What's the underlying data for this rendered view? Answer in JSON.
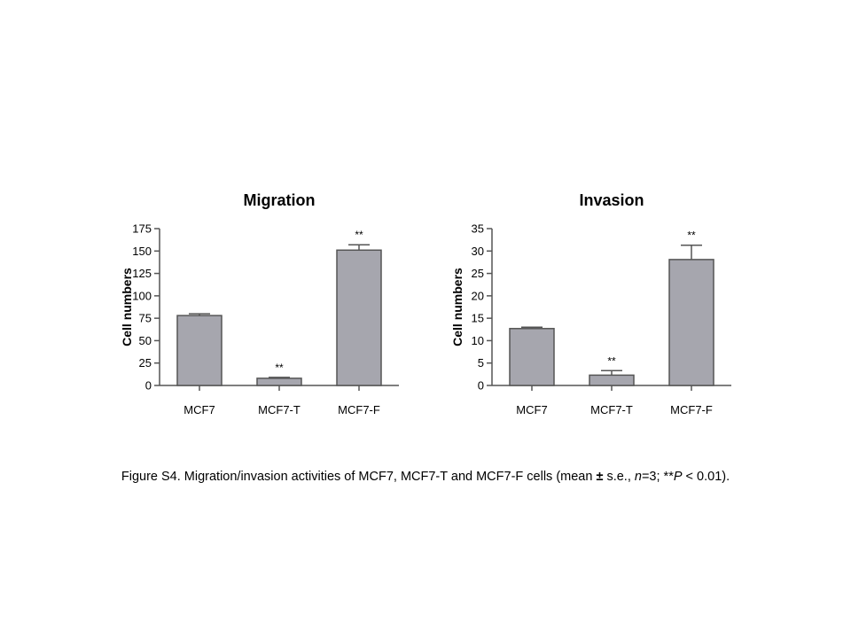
{
  "chart_data": [
    {
      "type": "bar",
      "title": "Migration",
      "ylabel": "Cell numbers",
      "xlabel": "",
      "categories": [
        "MCF7",
        "MCF7-T",
        "MCF7-F"
      ],
      "values": [
        78,
        8,
        151
      ],
      "errors": [
        2,
        1,
        6
      ],
      "significance": [
        "",
        "**",
        "**"
      ],
      "ylim": [
        0,
        175
      ],
      "yticks": [
        0,
        25,
        50,
        75,
        100,
        125,
        150,
        175
      ],
      "bar_color": "#a6a6ae",
      "grid": false,
      "legend": "none"
    },
    {
      "type": "bar",
      "title": "Invasion",
      "ylabel": "Cell numbers",
      "xlabel": "",
      "categories": [
        "MCF7",
        "MCF7-T",
        "MCF7-F"
      ],
      "values": [
        12.7,
        2.3,
        28.1
      ],
      "errors": [
        0.3,
        1.0,
        3.2
      ],
      "significance": [
        "",
        "**",
        "**"
      ],
      "ylim": [
        0,
        35
      ],
      "yticks": [
        0,
        5,
        10,
        15,
        20,
        25,
        30,
        35
      ],
      "bar_color": "#a6a6ae",
      "grid": false,
      "legend": "none"
    }
  ],
  "caption": {
    "prefix": "Figure S4. Migration/invasion activities of MCF7, MCF7-T and MCF7-F cells (mean ",
    "pm": "±",
    "se": " s.e., ",
    "n_var": "n",
    "n_value": "=3;  **",
    "p_var": "P",
    "p_value": " < 0.01)."
  }
}
